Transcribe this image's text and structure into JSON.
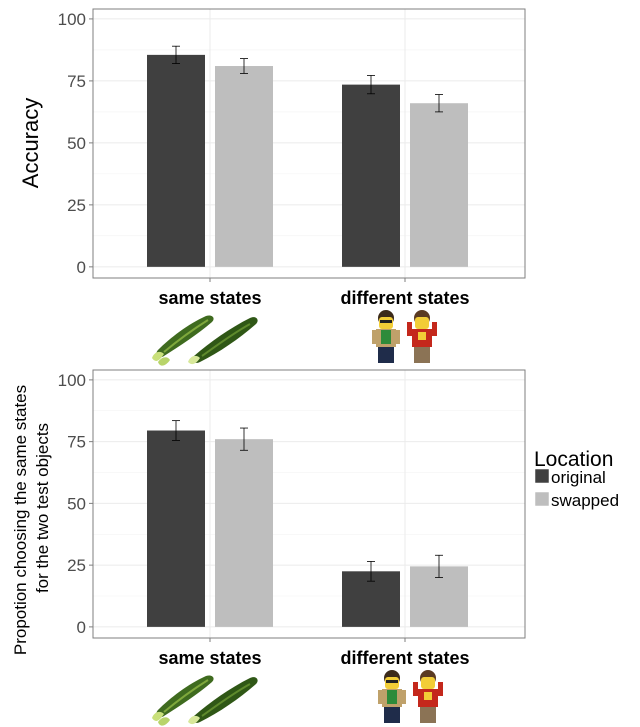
{
  "chart_data": [
    {
      "type": "bar",
      "categories": [
        "same states",
        "different states"
      ],
      "series": [
        {
          "name": "original",
          "values": [
            85.5,
            73.5
          ],
          "error": [
            3.5,
            3.7
          ]
        },
        {
          "name": "swapped",
          "values": [
            81.0,
            66.0
          ],
          "error": [
            3.0,
            3.5
          ]
        }
      ],
      "xlabel": "",
      "ylabel": "Accuracy",
      "ylim": [
        -4.5,
        104
      ],
      "yticks": [
        0,
        25,
        50,
        75,
        100
      ],
      "grid": true
    },
    {
      "type": "bar",
      "categories": [
        "same states",
        "different states"
      ],
      "series": [
        {
          "name": "original",
          "values": [
            79.5,
            22.5
          ],
          "error": [
            4.0,
            4.0
          ]
        },
        {
          "name": "swapped",
          "values": [
            76.0,
            24.5
          ],
          "error": [
            4.5,
            4.5
          ]
        }
      ],
      "xlabel": "",
      "ylabel": [
        "Propotion choosing the same states",
        "for the two test objects"
      ],
      "ylim": [
        -4.5,
        104
      ],
      "yticks": [
        0,
        25,
        50,
        75,
        100
      ],
      "grid": true
    }
  ],
  "legend": {
    "title": "Location",
    "placement": "right",
    "items": [
      {
        "label": "original",
        "color": "#404040"
      },
      {
        "label": "swapped",
        "color": "#bebebe"
      }
    ]
  },
  "colors": {
    "original": "#404040",
    "swapped": "#bebebe",
    "grid": "#ebebeb",
    "frame": "#7f7f7f"
  },
  "icons": {
    "same": "cucumber-icon",
    "different": "lego-figures-icon"
  }
}
